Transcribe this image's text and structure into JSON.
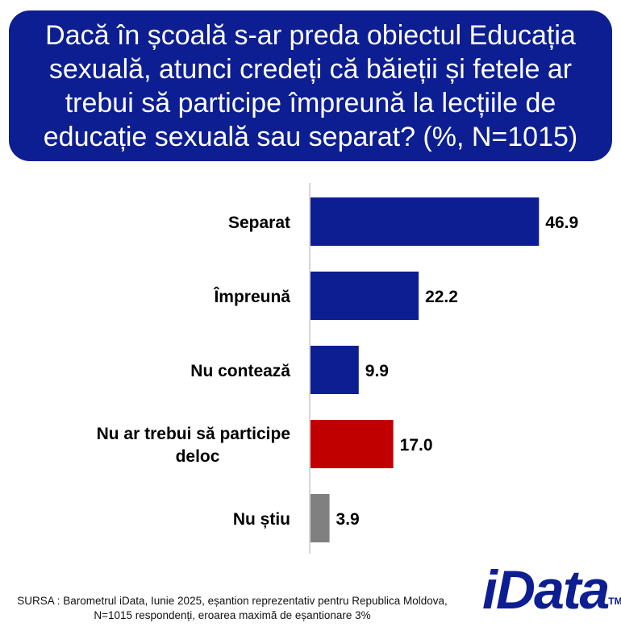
{
  "title": "Dacă în școală s-ar preda obiectul Educația sexuală, atunci credeți că băieții și fetele ar trebui să participe împreună la lecțiile de educație sexuală sau separat? (%, N=1015)",
  "source": "SURSA : Barometrul iData, Iunie 2025, eșantion reprezentativ pentru Republica Moldova, N=1015 respondenți, eroarea maximă de eșantionare 3%",
  "logo": {
    "text": "iData",
    "tm": "TM"
  },
  "colors": {
    "primary": "#0d1e92",
    "red": "#c00000",
    "gray": "#808080"
  },
  "chart_data": {
    "type": "bar",
    "orientation": "horizontal",
    "categories": [
      "Separat",
      "Împreună",
      "Nu contează",
      "Nu ar trebui să participe deloc",
      "Nu știu"
    ],
    "values": [
      46.9,
      22.2,
      9.9,
      17.0,
      3.9
    ],
    "value_labels": [
      "46.9",
      "22.2",
      "9.9",
      "17.0",
      "3.9"
    ],
    "bar_colors": [
      "#0d1e92",
      "#0d1e92",
      "#0d1e92",
      "#c00000",
      "#808080"
    ],
    "xlim": [
      0,
      50
    ],
    "grid": false
  }
}
